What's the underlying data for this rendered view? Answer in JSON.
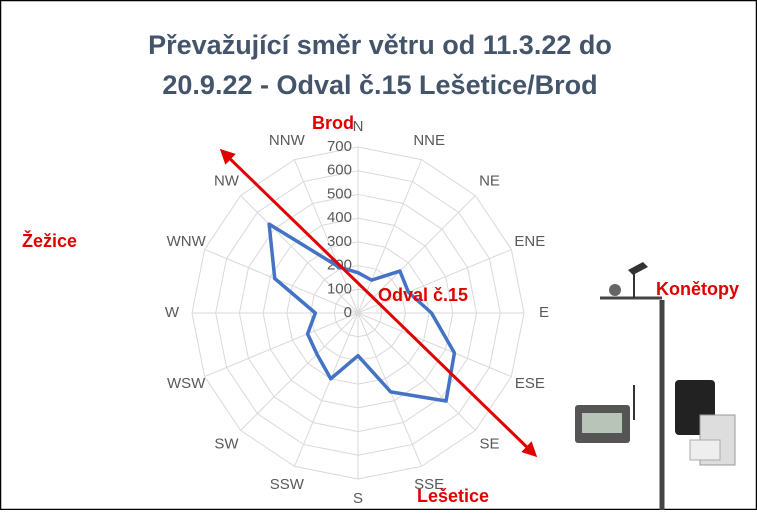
{
  "chart_data": {
    "type": "radar",
    "title_lines": [
      "Převažující směr větru od 11.3.22 do",
      "20.9.22 - Odval č.15 Lešetice/Brod"
    ],
    "categories": [
      "N",
      "NNE",
      "NE",
      "ENE",
      "E",
      "ESE",
      "SE",
      "SSE",
      "S",
      "SSW",
      "SW",
      "WSW",
      "W",
      "WNW",
      "NW",
      "NNW"
    ],
    "series": [
      {
        "color": "#4472c4",
        "values": [
          170,
          150,
          250,
          230,
          310,
          440,
          525,
          360,
          180,
          300,
          245,
          230,
          180,
          380,
          530,
          210
        ]
      }
    ],
    "rlim": [
      0,
      700
    ],
    "rticks": [
      0,
      100,
      200,
      300,
      400,
      500,
      600,
      700
    ],
    "grid": true,
    "annotations": [
      "Brod",
      "Žežice",
      "Konětopy",
      "Odval č.15",
      "Lešetice"
    ],
    "annotation_color": "#e00000"
  }
}
